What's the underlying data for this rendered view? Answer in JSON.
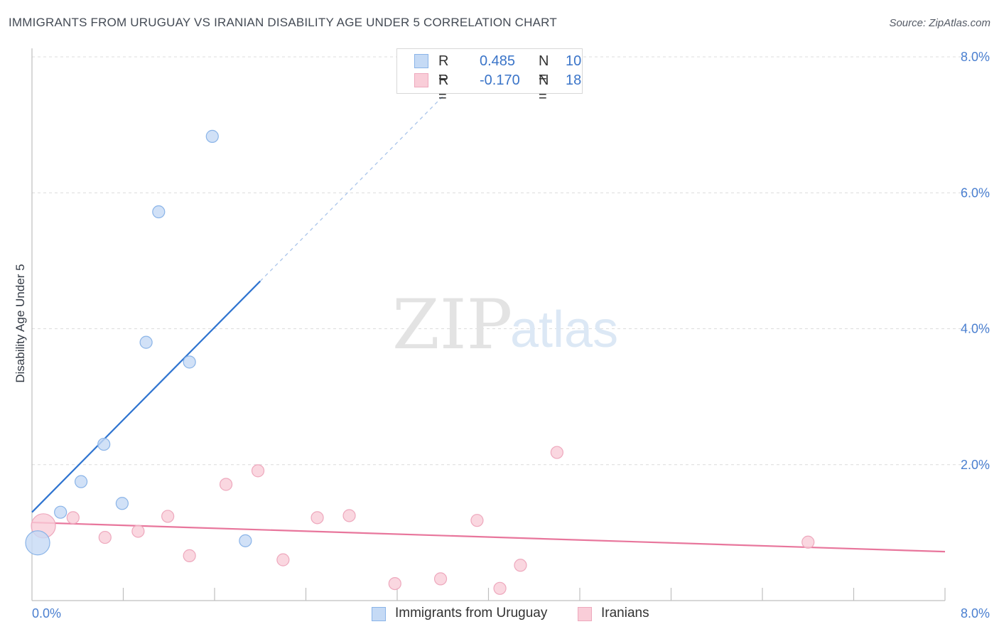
{
  "title": "IMMIGRANTS FROM URUGUAY VS IRANIAN DISABILITY AGE UNDER 5 CORRELATION CHART",
  "source": "Source: ZipAtlas.com",
  "watermark": {
    "zip": "ZIP",
    "atlas": "atlas"
  },
  "colors": {
    "uruguay_fill": "#c5daf5",
    "uruguay_stroke": "#8ab4e8",
    "uruguay_line": "#2f74d0",
    "iranian_fill": "#f9cdd8",
    "iranian_stroke": "#eea8bd",
    "iranian_line": "#e8769c",
    "tick": "#4a7fd0",
    "grid": "#dcdcdc"
  },
  "legend": {
    "rows": [
      {
        "r_label": "R =",
        "r_value": "0.485",
        "n_label": "N =",
        "n_value": "10"
      },
      {
        "r_label": "R =",
        "r_value": "-0.170",
        "n_label": "N =",
        "n_value": "18"
      }
    ]
  },
  "chart_data": {
    "type": "scatter",
    "title": "IMMIGRANTS FROM URUGUAY VS IRANIAN DISABILITY AGE UNDER 5 CORRELATION CHART",
    "xlabel": "",
    "ylabel": "Disability Age Under 5",
    "xlim": [
      0,
      8
    ],
    "ylim": [
      0,
      8
    ],
    "x_tick_labels": [
      "0.0%",
      "8.0%"
    ],
    "y_ticks": [
      2,
      4,
      6,
      8
    ],
    "y_tick_labels": [
      "2.0%",
      "4.0%",
      "6.0%",
      "8.0%"
    ],
    "grid": true,
    "series": [
      {
        "name": "Immigrants from Uruguay",
        "points": [
          {
            "x": 0.05,
            "y": 0.85,
            "big": true
          },
          {
            "x": 0.25,
            "y": 1.3
          },
          {
            "x": 0.43,
            "y": 1.75
          },
          {
            "x": 0.63,
            "y": 2.3
          },
          {
            "x": 0.79,
            "y": 1.43
          },
          {
            "x": 1.0,
            "y": 3.8
          },
          {
            "x": 1.11,
            "y": 5.72
          },
          {
            "x": 1.38,
            "y": 3.51
          },
          {
            "x": 1.58,
            "y": 6.83
          },
          {
            "x": 1.87,
            "y": 0.88
          }
        ],
        "trend": {
          "x0": 0.0,
          "y0": 1.3,
          "x1": 2.0,
          "y1": 4.7,
          "dash_to_x": 3.7
        }
      },
      {
        "name": "Iranians",
        "points": [
          {
            "x": 0.1,
            "y": 1.1,
            "big": true
          },
          {
            "x": 0.36,
            "y": 1.22
          },
          {
            "x": 0.64,
            "y": 0.93
          },
          {
            "x": 0.93,
            "y": 1.02
          },
          {
            "x": 1.19,
            "y": 1.24
          },
          {
            "x": 1.38,
            "y": 0.66
          },
          {
            "x": 1.7,
            "y": 1.71
          },
          {
            "x": 1.98,
            "y": 1.91
          },
          {
            "x": 2.2,
            "y": 0.6
          },
          {
            "x": 2.5,
            "y": 1.22
          },
          {
            "x": 2.78,
            "y": 1.25
          },
          {
            "x": 3.18,
            "y": 0.25
          },
          {
            "x": 3.58,
            "y": 0.32
          },
          {
            "x": 3.9,
            "y": 1.18
          },
          {
            "x": 4.1,
            "y": 0.18
          },
          {
            "x": 4.28,
            "y": 0.52
          },
          {
            "x": 4.6,
            "y": 2.18
          },
          {
            "x": 6.8,
            "y": 0.86
          }
        ],
        "trend": {
          "x0": 0.0,
          "y0": 1.15,
          "x1": 8.0,
          "y1": 0.72
        }
      }
    ]
  }
}
